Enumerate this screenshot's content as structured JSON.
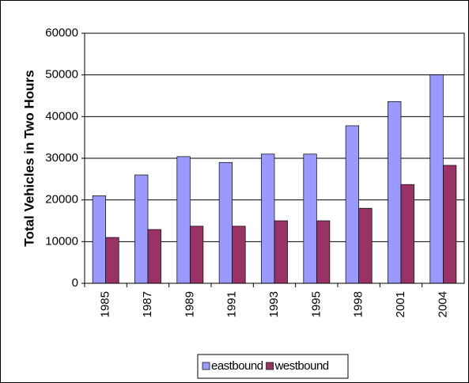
{
  "chart_data": {
    "type": "bar",
    "y_label": "Total Vehicles in Two Hours",
    "categories": [
      "1985",
      "1987",
      "1989",
      "1991",
      "1993",
      "1995",
      "1998",
      "2001",
      "2004"
    ],
    "series": [
      {
        "name": "eastbound",
        "color": "#9999ff",
        "values": [
          21000,
          26000,
          30400,
          29000,
          31000,
          31000,
          37800,
          43600,
          50000
        ]
      },
      {
        "name": "westbound",
        "color": "#993366",
        "values": [
          11000,
          12900,
          13700,
          13700,
          15000,
          15000,
          18000,
          23700,
          28300
        ]
      }
    ],
    "ylim": [
      0,
      60000
    ],
    "yticks": [
      0,
      10000,
      20000,
      30000,
      40000,
      50000,
      60000
    ],
    "grid": true,
    "legend": "bottom"
  }
}
